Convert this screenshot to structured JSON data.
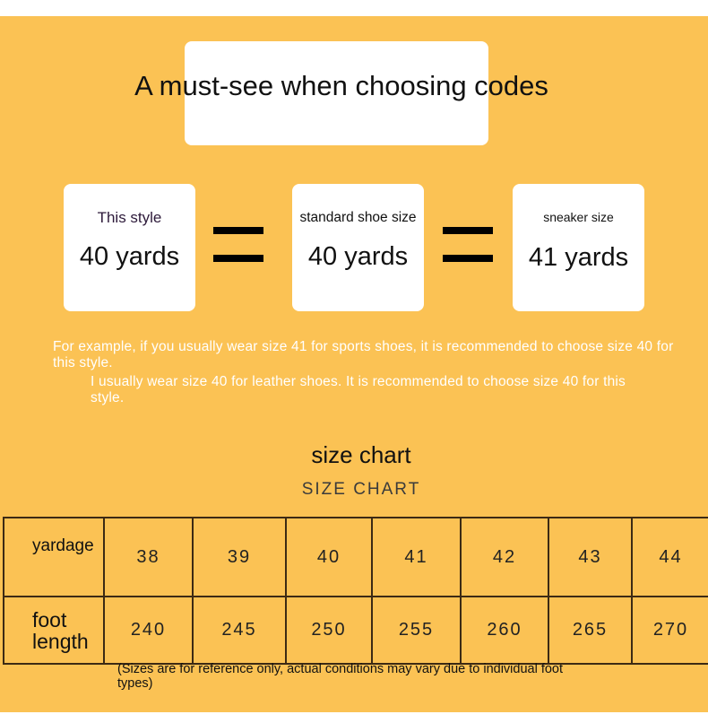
{
  "header": {
    "title": "A must-see when choosing codes"
  },
  "comparison": {
    "cards": [
      {
        "label": "This style",
        "value": "40 yards"
      },
      {
        "label": "standard shoe size",
        "value": "40 yards"
      },
      {
        "label": "sneaker size",
        "value": "41 yards"
      }
    ]
  },
  "notes": {
    "line1": "For example, if you usually wear size 41 for sports shoes, it is recommended to choose size 40 for this style.",
    "line2": "I usually wear size 40 for leather shoes. It is recommended to choose size 40 for this style."
  },
  "chart_section": {
    "title": "size chart",
    "subtitle": "SIZE CHART"
  },
  "size_table": {
    "row1_header": "yardage",
    "row2_header": "foot length",
    "sizes": [
      "38",
      "39",
      "40",
      "41",
      "42",
      "43",
      "44"
    ],
    "foot_lengths": [
      "240",
      "245",
      "250",
      "255",
      "260",
      "265",
      "270"
    ]
  },
  "footnote": "(Sizes are for reference only, actual conditions may vary due to individual foot types)",
  "colors": {
    "background": "#fbc254",
    "card": "#ffffff",
    "note_text": "#ffffff",
    "table_border": "#3c2a14"
  }
}
